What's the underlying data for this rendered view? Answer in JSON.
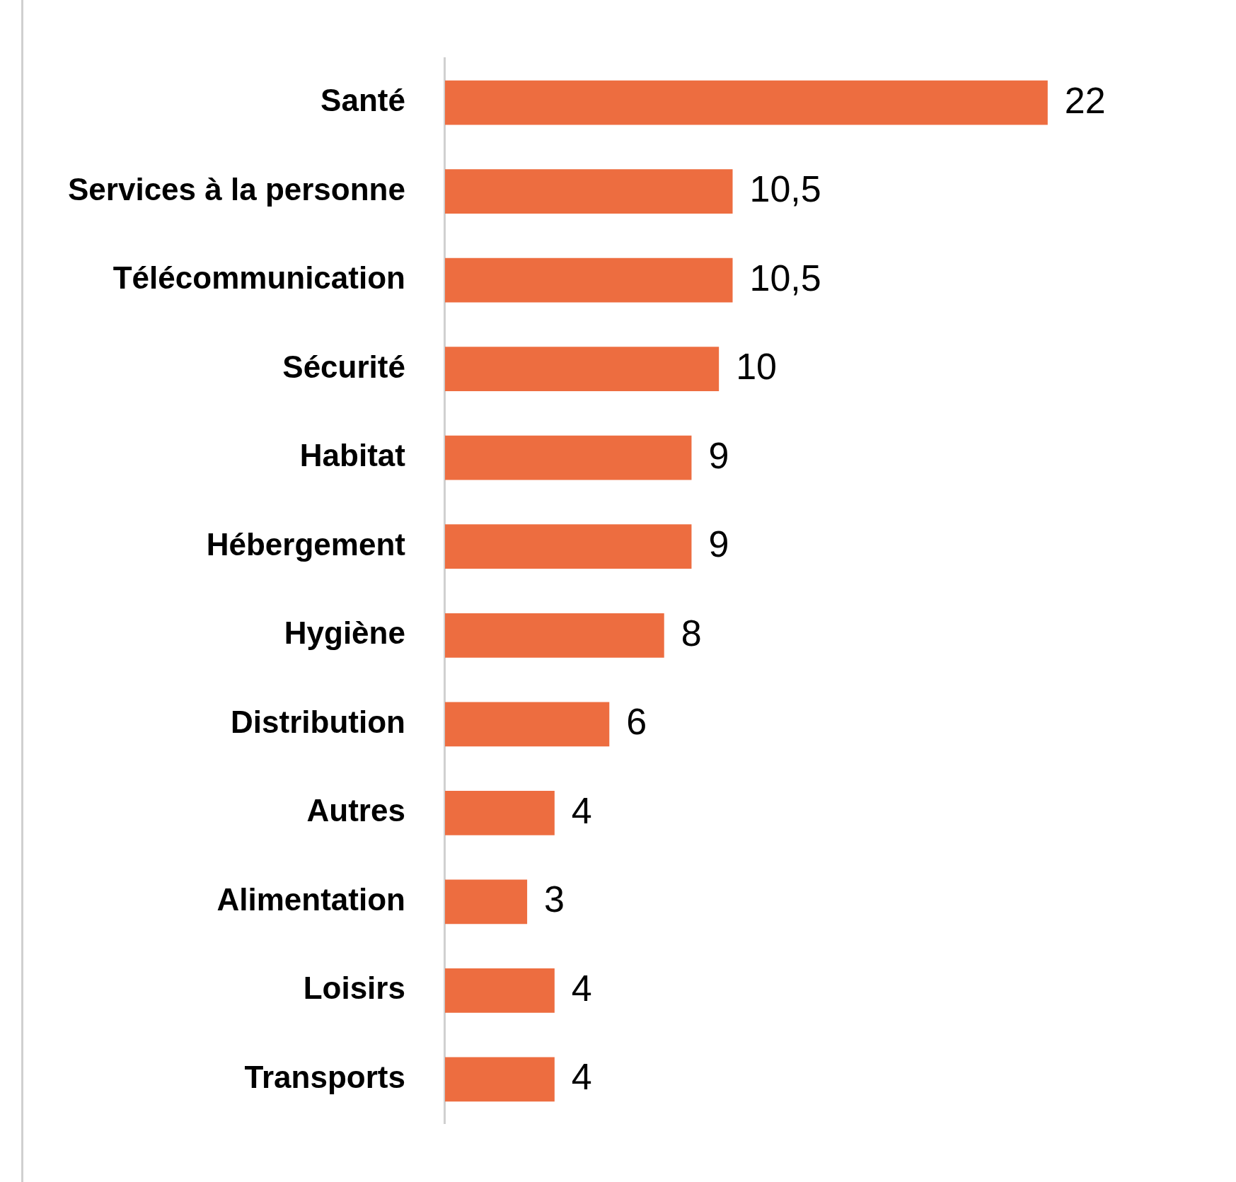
{
  "chart_data": {
    "type": "bar",
    "orientation": "horizontal",
    "categories": [
      "Santé",
      "Services à la personne",
      "Télécommunication",
      "Sécurité",
      "Habitat",
      "Hébergement",
      "Hygiène",
      "Distribution",
      "Autres",
      "Alimentation",
      "Loisirs",
      "Transports"
    ],
    "values": [
      22,
      10.5,
      10.5,
      10,
      9,
      9,
      8,
      6,
      4,
      3,
      4,
      4
    ],
    "value_labels": [
      "22",
      "10,5",
      "10,5",
      "10",
      "9",
      "9",
      "8",
      "6",
      "4",
      "3",
      "4",
      "4"
    ],
    "color": "#ed6d40",
    "grid": false,
    "legend": false
  }
}
